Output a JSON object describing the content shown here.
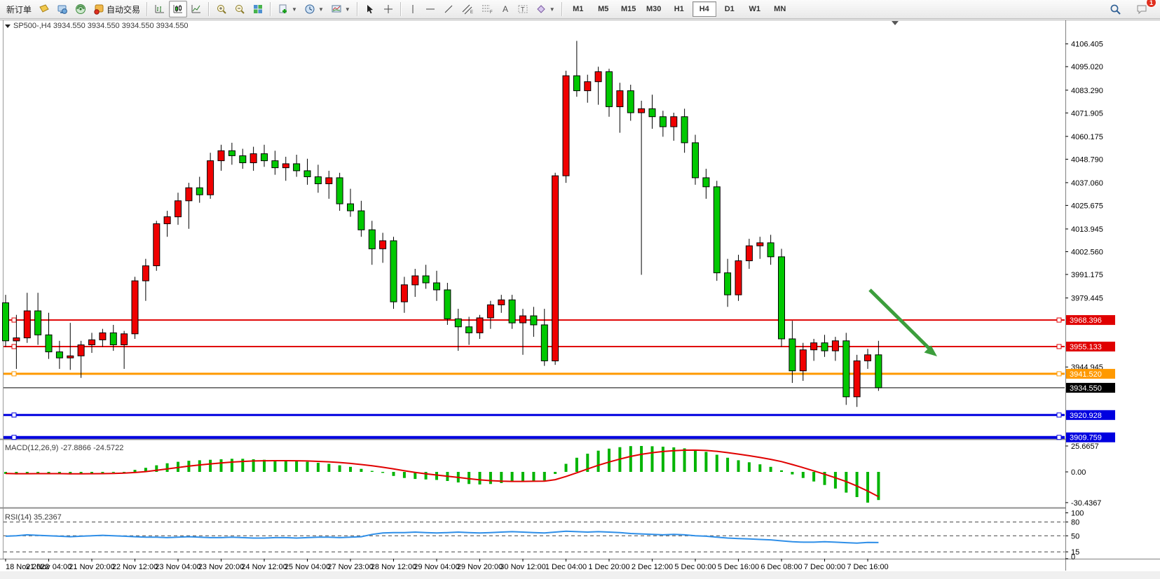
{
  "toolbar": {
    "new_order_label": "新订单",
    "autotrading_label": "自动交易",
    "timeframes": [
      "M1",
      "M5",
      "M15",
      "M30",
      "H1",
      "H4",
      "D1",
      "W1",
      "MN"
    ],
    "active_timeframe": "H4",
    "notification_badge": "1"
  },
  "chart_header": {
    "symbol_info": "SP500-,H4  3934.550 3934.550 3934.550 3934.550"
  },
  "price_axis": {
    "ticks": [
      "4106.405",
      "4095.020",
      "4083.290",
      "4071.905",
      "4060.175",
      "4048.790",
      "4037.060",
      "4025.675",
      "4013.945",
      "4002.560",
      "3991.175",
      "3979.445",
      "3944.945"
    ]
  },
  "horizontal_lines": [
    {
      "label": "3968.396",
      "price": 3968.396,
      "color": "#e00000",
      "thickness": 2
    },
    {
      "label": "3955.133",
      "price": 3955.133,
      "color": "#e00000",
      "thickness": 2
    },
    {
      "label": "3941.520",
      "price": 3941.52,
      "color": "#ff9900",
      "thickness": 3
    },
    {
      "label": "3920.928",
      "price": 3920.928,
      "color": "#0000e0",
      "thickness": 3
    },
    {
      "label": "3909.759",
      "price": 3909.759,
      "color": "#0000e0",
      "thickness": 4
    }
  ],
  "current_price": {
    "label": "3934.550",
    "price": 3934.55
  },
  "macd_panel": {
    "label": "MACD(12,26,9) -27.8866 -24.5722",
    "axis_ticks": [
      "25.6657",
      "0.00",
      "-30.4367"
    ]
  },
  "rsi_panel": {
    "label": "RSI(14) 35.2367",
    "axis_ticks": [
      "100",
      "80",
      "50",
      "15",
      "0"
    ],
    "level_lines": [
      80,
      50,
      15
    ]
  },
  "time_axis": {
    "labels": [
      "18 Nov 2022",
      "21 Nov 04:00",
      "21 Nov 20:00",
      "22 Nov 12:00",
      "23 Nov 04:00",
      "23 Nov 20:00",
      "24 Nov 12:00",
      "25 Nov 04:00",
      "27 Nov 23:00",
      "28 Nov 12:00",
      "29 Nov 04:00",
      "29 Nov 20:00",
      "30 Nov 12:00",
      "1 Dec 04:00",
      "1 Dec 20:00",
      "2 Dec 12:00",
      "5 Dec 00:00",
      "5 Dec 16:00",
      "6 Dec 08:00",
      "7 Dec 00:00",
      "7 Dec 16:00"
    ]
  },
  "annotations": {
    "arrow_color": "#3c9e3c"
  },
  "chart_data": {
    "type": "candlestick",
    "symbol": "SP500-",
    "period": "H4",
    "up_color": "#f00000",
    "down_color": "#00c800",
    "note": "red = bullish, green = bearish (CN convention)",
    "y_axis_ticks": [
      4106.405,
      4095.02,
      4083.29,
      4071.905,
      4060.175,
      4048.79,
      4037.06,
      4025.675,
      4013.945,
      4002.56,
      3991.175,
      3979.445,
      3944.945
    ],
    "candles": [
      [
        3977,
        3981,
        3955,
        3958
      ],
      [
        3958,
        3971,
        3944,
        3959.5
      ],
      [
        3959.5,
        3982,
        3957,
        3973
      ],
      [
        3973,
        3982,
        3956,
        3961
      ],
      [
        3961,
        3972,
        3949,
        3952.5
      ],
      [
        3952.5,
        3958,
        3944,
        3949.5
      ],
      [
        3949.5,
        3967,
        3943.5,
        3950.5
      ],
      [
        3950.5,
        3958,
        3939.5,
        3956
      ],
      [
        3956,
        3962,
        3952,
        3958.5
      ],
      [
        3958.5,
        3964,
        3955,
        3962
      ],
      [
        3962,
        3966,
        3953,
        3956
      ],
      [
        3956,
        3963,
        3944,
        3961.5
      ],
      [
        3961.5,
        3990,
        3959,
        3988
      ],
      [
        3988,
        3999,
        3978,
        3995.5
      ],
      [
        3995.5,
        4018,
        3993,
        4016.5
      ],
      [
        4016.5,
        4023,
        4010,
        4020
      ],
      [
        4020,
        4032,
        4016,
        4028
      ],
      [
        4028,
        4037,
        4014,
        4034.5
      ],
      [
        4034.5,
        4040,
        4027,
        4031
      ],
      [
        4031,
        4052,
        4029,
        4048
      ],
      [
        4048,
        4056,
        4043,
        4053
      ],
      [
        4053,
        4057,
        4046,
        4050.5
      ],
      [
        4050.5,
        4054,
        4044,
        4047
      ],
      [
        4047,
        4055,
        4043,
        4051.5
      ],
      [
        4051.5,
        4056,
        4045,
        4048
      ],
      [
        4048,
        4053,
        4041,
        4044.5
      ],
      [
        4044.5,
        4050,
        4038,
        4046.5
      ],
      [
        4046.5,
        4051,
        4040,
        4043
      ],
      [
        4043,
        4049,
        4036,
        4040
      ],
      [
        4040,
        4046,
        4032,
        4036.5
      ],
      [
        4036.5,
        4043,
        4029,
        4039.5
      ],
      [
        4039.5,
        4042,
        4023,
        4026.5
      ],
      [
        4026.5,
        4034,
        4020,
        4023
      ],
      [
        4023,
        4028,
        4010,
        4013.5
      ],
      [
        4013.5,
        4018,
        3996,
        4004
      ],
      [
        4004,
        4012,
        3997,
        4008
      ],
      [
        4008,
        4010,
        3974,
        3977.5
      ],
      [
        3977.5,
        3990,
        3972,
        3986
      ],
      [
        3986,
        3994,
        3980,
        3990.5
      ],
      [
        3990.5,
        3996,
        3984,
        3987
      ],
      [
        3987,
        3993,
        3978,
        3983.5
      ],
      [
        3983.5,
        3987,
        3966,
        3969
      ],
      [
        3969,
        3974,
        3953,
        3965
      ],
      [
        3965,
        3970,
        3956,
        3962
      ],
      [
        3962,
        3971,
        3959,
        3969.5
      ],
      [
        3969.5,
        3978,
        3964,
        3976
      ],
      [
        3976,
        3981,
        3972,
        3978.5
      ],
      [
        3978.5,
        3981,
        3964,
        3967
      ],
      [
        3967,
        3974,
        3951,
        3970.5
      ],
      [
        3970.5,
        3975,
        3960,
        3966
      ],
      [
        3966,
        3974,
        3945.5,
        3948
      ],
      [
        3948,
        4042,
        3946,
        4040.5
      ],
      [
        4040.5,
        4093,
        4037,
        4090.5
      ],
      [
        4090.5,
        4107.9,
        4080,
        4083
      ],
      [
        4083,
        4091,
        4077,
        4087.5
      ],
      [
        4087.5,
        4095,
        4076,
        4092.5
      ],
      [
        4092.5,
        4094,
        4070,
        4075
      ],
      [
        4075,
        4087,
        4062,
        4083
      ],
      [
        4083,
        4086,
        4068,
        4072
      ],
      [
        4072,
        4078,
        3991,
        4074
      ],
      [
        4074,
        4081,
        4064,
        4070
      ],
      [
        4070,
        4073,
        4060,
        4065
      ],
      [
        4065,
        4072,
        4058,
        4070
      ],
      [
        4070,
        4074,
        4052,
        4057
      ],
      [
        4057,
        4061,
        4036,
        4039.5
      ],
      [
        4039.5,
        4044,
        4029,
        4035
      ],
      [
        4035,
        4038,
        3988,
        3992
      ],
      [
        3992,
        3999,
        3975,
        3981
      ],
      [
        3981,
        4001,
        3978,
        3998
      ],
      [
        3998,
        4009,
        3994,
        4005.5
      ],
      [
        4005.5,
        4010,
        3999,
        4007
      ],
      [
        4007,
        4011,
        3996,
        4000
      ],
      [
        4000,
        4004,
        3955,
        3959
      ],
      [
        3959,
        3968,
        3937,
        3943
      ],
      [
        3943,
        3957,
        3938,
        3953.5
      ],
      [
        3953.5,
        3959,
        3948,
        3957
      ],
      [
        3957,
        3961,
        3950,
        3953
      ],
      [
        3953,
        3960,
        3948,
        3958
      ],
      [
        3958,
        3962,
        3926,
        3930
      ],
      [
        3930,
        3951,
        3925,
        3948
      ],
      [
        3948,
        3954,
        3944,
        3951
      ],
      [
        3951,
        3958,
        3933,
        3934.55
      ]
    ],
    "macd_histogram": [
      -2,
      -2.5,
      -1.5,
      -1,
      -1.5,
      -2,
      -2.5,
      -2,
      -1.5,
      -1,
      -0.5,
      0,
      2,
      4,
      6.5,
      8.5,
      10,
      11,
      11.5,
      12,
      12.5,
      13,
      13,
      12.5,
      12,
      11.5,
      11,
      10.5,
      10,
      9,
      8,
      6.5,
      5,
      3,
      1,
      -1,
      -4,
      -6,
      -7,
      -7.5,
      -8,
      -9,
      -10.5,
      -12,
      -12.5,
      -12,
      -11,
      -10,
      -9.5,
      -9,
      -8.5,
      -2,
      8,
      14,
      18,
      21,
      23,
      24.5,
      25.5,
      25.67,
      25.4,
      25,
      24.3,
      23.3,
      21.8,
      19.8,
      17,
      14,
      11.5,
      9.5,
      7.5,
      5,
      1.5,
      -2.5,
      -6,
      -9.5,
      -13,
      -16.5,
      -20.5,
      -25,
      -30.44,
      -27.89
    ],
    "macd_signal": [
      -1.6,
      -1.8,
      -1.8,
      -1.7,
      -1.7,
      -1.7,
      -1.9,
      -1.9,
      -1.8,
      -1.7,
      -1.5,
      -1.2,
      -0.6,
      0.3,
      1.6,
      3,
      4.4,
      5.7,
      6.9,
      7.9,
      8.8,
      9.7,
      10.3,
      10.8,
      11,
      11.1,
      11.1,
      11,
      10.8,
      10.4,
      10,
      9.3,
      8.4,
      7.3,
      6,
      4.6,
      2.9,
      1.1,
      -0.5,
      -1.9,
      -3.1,
      -4.3,
      -5.5,
      -6.8,
      -7.9,
      -8.7,
      -9.2,
      -9.4,
      -9.4,
      -9.3,
      -9.2,
      -7.7,
      -4.6,
      -0.9,
      2.9,
      6.5,
      9.8,
      12.7,
      15.3,
      17.4,
      19,
      20.2,
      21,
      21.5,
      21.6,
      21.2,
      20.4,
      19.1,
      17.6,
      16,
      14.3,
      12.4,
      10.2,
      7.3,
      4.2,
      1,
      -2.3,
      -5.8,
      -9.6,
      -14,
      -19,
      -24.57
    ],
    "macd_current": "-27.8866",
    "macd_signal_current": "-24.5722",
    "rsi": [
      49,
      50,
      52,
      51,
      50,
      49,
      48,
      49,
      50,
      51,
      50,
      49,
      48,
      47,
      47,
      46,
      47,
      48,
      47,
      46,
      46,
      47,
      46,
      45,
      45,
      46,
      46,
      45,
      46,
      47,
      47,
      46,
      47,
      48,
      53,
      56,
      57,
      57,
      58,
      57,
      56,
      57,
      58,
      57,
      56,
      57,
      58,
      59,
      58,
      57,
      56,
      58,
      60,
      59,
      58,
      59,
      58,
      57,
      55,
      54,
      53,
      52,
      53,
      52,
      50,
      49,
      47,
      45,
      44,
      43,
      42,
      41,
      39,
      37,
      36,
      36,
      37,
      36,
      35,
      34,
      35.5,
      35.24
    ],
    "rsi_current": "35.2367"
  }
}
